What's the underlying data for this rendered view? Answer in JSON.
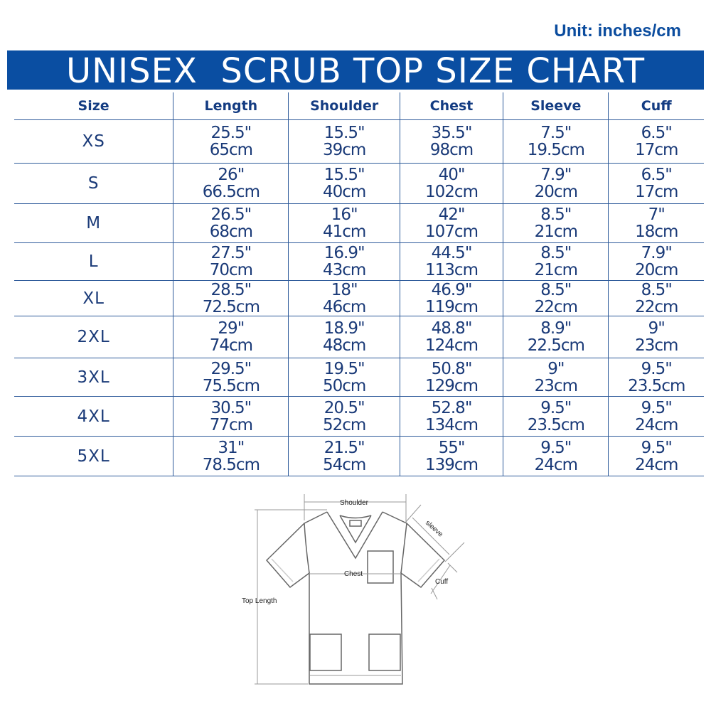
{
  "unit_label": "Unit: inches/cm",
  "title": "UNISEX  SCRUB TOP SIZE CHART",
  "columns": [
    "Size",
    "Length",
    "Shoulder",
    "Chest",
    "Sleeve",
    "Cuff"
  ],
  "rows": [
    {
      "size": "XS",
      "cells": [
        [
          "25.5\"",
          "65cm"
        ],
        [
          "15.5\"",
          "39cm"
        ],
        [
          "35.5\"",
          "98cm"
        ],
        [
          "7.5\"",
          "19.5cm"
        ],
        [
          "6.5\"",
          "17cm"
        ]
      ]
    },
    {
      "size": "S",
      "cells": [
        [
          "26\"",
          "66.5cm"
        ],
        [
          "15.5\"",
          "40cm"
        ],
        [
          "40\"",
          "102cm"
        ],
        [
          "7.9\"",
          "20cm"
        ],
        [
          "6.5\"",
          "17cm"
        ]
      ]
    },
    {
      "size": "M",
      "cells": [
        [
          "26.5\"",
          "68cm"
        ],
        [
          "16\"",
          "41cm"
        ],
        [
          "42\"",
          "107cm"
        ],
        [
          "8.5\"",
          "21cm"
        ],
        [
          "7\"",
          "18cm"
        ]
      ]
    },
    {
      "size": "L",
      "cells": [
        [
          "27.5\"",
          "70cm"
        ],
        [
          "16.9\"",
          "43cm"
        ],
        [
          "44.5\"",
          "113cm"
        ],
        [
          "8.5\"",
          "21cm"
        ],
        [
          "7.9\"",
          "20cm"
        ]
      ]
    },
    {
      "size": "XL",
      "cells": [
        [
          "28.5\"",
          "72.5cm"
        ],
        [
          "18\"",
          "46cm"
        ],
        [
          "46.9\"",
          "119cm"
        ],
        [
          "8.5\"",
          "22cm"
        ],
        [
          "8.5\"",
          "22cm"
        ]
      ]
    },
    {
      "size": "2XL",
      "cells": [
        [
          "29\"",
          "74cm"
        ],
        [
          "18.9\"",
          "48cm"
        ],
        [
          "48.8\"",
          "124cm"
        ],
        [
          "8.9\"",
          "22.5cm"
        ],
        [
          "9\"",
          "23cm"
        ]
      ]
    },
    {
      "size": "3XL",
      "cells": [
        [
          "29.5\"",
          "75.5cm"
        ],
        [
          "19.5\"",
          "50cm"
        ],
        [
          "50.8\"",
          "129cm"
        ],
        [
          "9\"",
          "23cm"
        ],
        [
          "9.5\"",
          "23.5cm"
        ]
      ]
    },
    {
      "size": "4XL",
      "cells": [
        [
          "30.5\"",
          "77cm"
        ],
        [
          "20.5\"",
          "52cm"
        ],
        [
          "52.8\"",
          "134cm"
        ],
        [
          "9.5\"",
          "23.5cm"
        ],
        [
          "9.5\"",
          "24cm"
        ]
      ]
    },
    {
      "size": "5XL",
      "cells": [
        [
          "31\"",
          "78.5cm"
        ],
        [
          "21.5\"",
          "54cm"
        ],
        [
          "55\"",
          "139cm"
        ],
        [
          "9.5\"",
          "24cm"
        ],
        [
          "9.5\"",
          "24cm"
        ]
      ]
    }
  ],
  "diagram": {
    "shoulder": "Shoulder",
    "sleeve": "sleeve",
    "chest": "Chest",
    "cuff": "Cuff",
    "top_length": "Top Length"
  },
  "colors": {
    "banner": "#0a4ea2",
    "text": "#1a3a78"
  }
}
